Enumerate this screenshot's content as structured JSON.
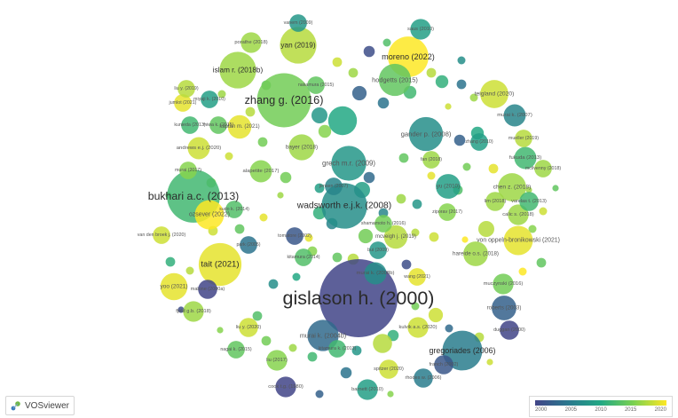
{
  "app": {
    "name": "VOSviewer"
  },
  "colors": {
    "viridis": [
      "#414487",
      "#2a788e",
      "#22a884",
      "#7ad151",
      "#fde725"
    ],
    "label": "#2b2b2b"
  },
  "legend": {
    "ticks": [
      "2000",
      "2005",
      "2010",
      "2015",
      "2020"
    ],
    "min_year": 2000,
    "max_year": 2022
  },
  "nodes": [
    {
      "label": "gislason h. (2000)",
      "year": 2000,
      "weight": 100
    },
    {
      "label": "bukhari a.c. (2013)",
      "year": 2013,
      "weight": 46
    },
    {
      "label": "zhang g. (2016)",
      "year": 2016,
      "weight": 48
    },
    {
      "label": "wadsworth e.j.k. (2008)",
      "year": 2008,
      "weight": 34
    },
    {
      "label": "tait (2021)",
      "year": 2021,
      "weight": 30
    },
    {
      "label": "moreno (2022)",
      "year": 2022,
      "weight": 27
    },
    {
      "label": "gregoriades (2006)",
      "year": 2006,
      "weight": 26
    },
    {
      "label": "yan (2019)",
      "year": 2019,
      "weight": 22
    },
    {
      "label": "islam r. (2018b)",
      "year": 2018,
      "weight": 22
    },
    {
      "label": "grech m.r. (2009)",
      "year": 2009,
      "weight": 20
    },
    {
      "label": "gander p. (2008)",
      "year": 2008,
      "weight": 19
    },
    {
      "label": "hodgetts (2015)",
      "year": 2015,
      "weight": 17
    },
    {
      "label": "murai k. (2004b)",
      "year": 2004,
      "weight": 16
    },
    {
      "label": "von oppeln-bronikowski (2021)",
      "year": 2021,
      "weight": 14
    },
    {
      "label": "ozsever (2022)",
      "year": 2022,
      "weight": 14
    },
    {
      "label": "teigland (2020)",
      "year": 2020,
      "weight": 13
    },
    {
      "label": "chen z. (2018)",
      "year": 2018,
      "weight": 13
    },
    {
      "label": "yoo (2021)",
      "year": 2021,
      "weight": 12
    },
    {
      "label": "bayer (2018)",
      "year": 2018,
      "weight": 11
    },
    {
      "label": "roberts (2003)",
      "year": 2003,
      "weight": 10
    },
    {
      "label": "hareide o.s. (2018)",
      "year": 2018,
      "weight": 10
    },
    {
      "label": "yu (2010)",
      "year": 2010,
      "weight": 10
    },
    {
      "label": "kaptan m. (2021)",
      "year": 2021,
      "weight": 9
    },
    {
      "label": "mcveigh j. (2019)",
      "year": 2019,
      "weight": 9
    },
    {
      "label": "murai k. (2007)",
      "year": 2007,
      "weight": 8
    },
    {
      "label": "andrews e.j. (2020)",
      "year": 2020,
      "weight": 8
    },
    {
      "label": "alapetite (2017)",
      "year": 2017,
      "weight": 8
    },
    {
      "label": "fukuda (2013)",
      "year": 2013,
      "weight": 8
    },
    {
      "label": "porathe (2018)",
      "year": 2018,
      "weight": 7
    },
    {
      "label": "muczynski (2016)",
      "year": 2016,
      "weight": 7
    },
    {
      "label": "cook t.g. (1980)",
      "year": 1980,
      "weight": 7
    },
    {
      "label": "barnett (2010)",
      "year": 2010,
      "weight": 7
    },
    {
      "label": "murai k. (2008b)",
      "year": 2008,
      "weight": 8
    },
    {
      "label": "saus (2010)",
      "year": 2010,
      "weight": 7
    },
    {
      "label": "calic s. (2018)",
      "year": 2018,
      "weight": 7
    },
    {
      "label": "fjeld g.b. (2018)",
      "year": 2018,
      "weight": 7
    },
    {
      "label": "kulvik a.s. (2020)",
      "year": 2020,
      "weight": 7
    },
    {
      "label": "liu (2017)",
      "year": 2017,
      "weight": 7
    },
    {
      "label": "franch (2002)",
      "year": 2002,
      "weight": 6
    },
    {
      "label": "rhodes w. (2006)",
      "year": 2006,
      "weight": 6
    },
    {
      "label": "spitzer (2020)",
      "year": 2020,
      "weight": 6
    },
    {
      "label": "malone (2000a)",
      "year": 2000,
      "weight": 6
    },
    {
      "label": "varelas t. (2013)",
      "year": 2013,
      "weight": 6
    },
    {
      "label": "lim (2018)",
      "year": 2018,
      "weight": 6
    },
    {
      "label": "liu y. (2020)",
      "year": 2020,
      "weight": 6
    },
    {
      "label": "duggan (2000)",
      "year": 2000,
      "weight": 6
    },
    {
      "label": "murai (2017)",
      "year": 2017,
      "weight": 5
    },
    {
      "label": "vanem (2009)",
      "year": 2009,
      "weight": 5
    },
    {
      "label": "kitamura (2014)",
      "year": 2014,
      "weight": 5
    },
    {
      "label": "shamamoto h. (2016)",
      "year": 2016,
      "weight": 5
    },
    {
      "label": "ziporav (2017)",
      "year": 2017,
      "weight": 5
    },
    {
      "label": "van den broek j. (2020)",
      "year": 2020,
      "weight": 5
    },
    {
      "label": "nagai k. (2015)",
      "year": 2015,
      "weight": 5
    },
    {
      "label": "kitamura k. (2013)",
      "year": 2013,
      "weight": 5
    },
    {
      "label": "mcilvenny (2018)",
      "year": 2018,
      "weight": 5
    },
    {
      "label": "tomatore (2002)",
      "year": 2002,
      "weight": 5
    },
    {
      "label": "jumlot (2021)",
      "year": 2021,
      "weight": 5
    },
    {
      "label": "kunieda (2013)",
      "year": 2013,
      "weight": 5
    },
    {
      "label": "miwa k. (2015)",
      "year": 2015,
      "weight": 5
    },
    {
      "label": "miyaji k. (2010)",
      "year": 2010,
      "weight": 5
    },
    {
      "label": "mueller (2019)",
      "year": 2019,
      "weight": 5
    },
    {
      "label": "sudo k. (2014)",
      "year": 2014,
      "weight": 5
    },
    {
      "label": "liu y. (2019)",
      "year": 2019,
      "weight": 5
    },
    {
      "label": "park (2005)",
      "year": 2005,
      "weight": 5
    },
    {
      "label": "fan (2018)",
      "year": 2018,
      "weight": 5
    },
    {
      "label": "zhang (2010)",
      "year": 2010,
      "weight": 5
    },
    {
      "label": "nakamura (2015)",
      "year": 2015,
      "weight": 5
    },
    {
      "label": "bui (2009)",
      "year": 2009,
      "weight": 5
    },
    {
      "label": "jensen (2007)",
      "year": 2007,
      "weight": 5
    },
    {
      "label": "wang (2021)",
      "year": 2021,
      "weight": 5
    }
  ]
}
